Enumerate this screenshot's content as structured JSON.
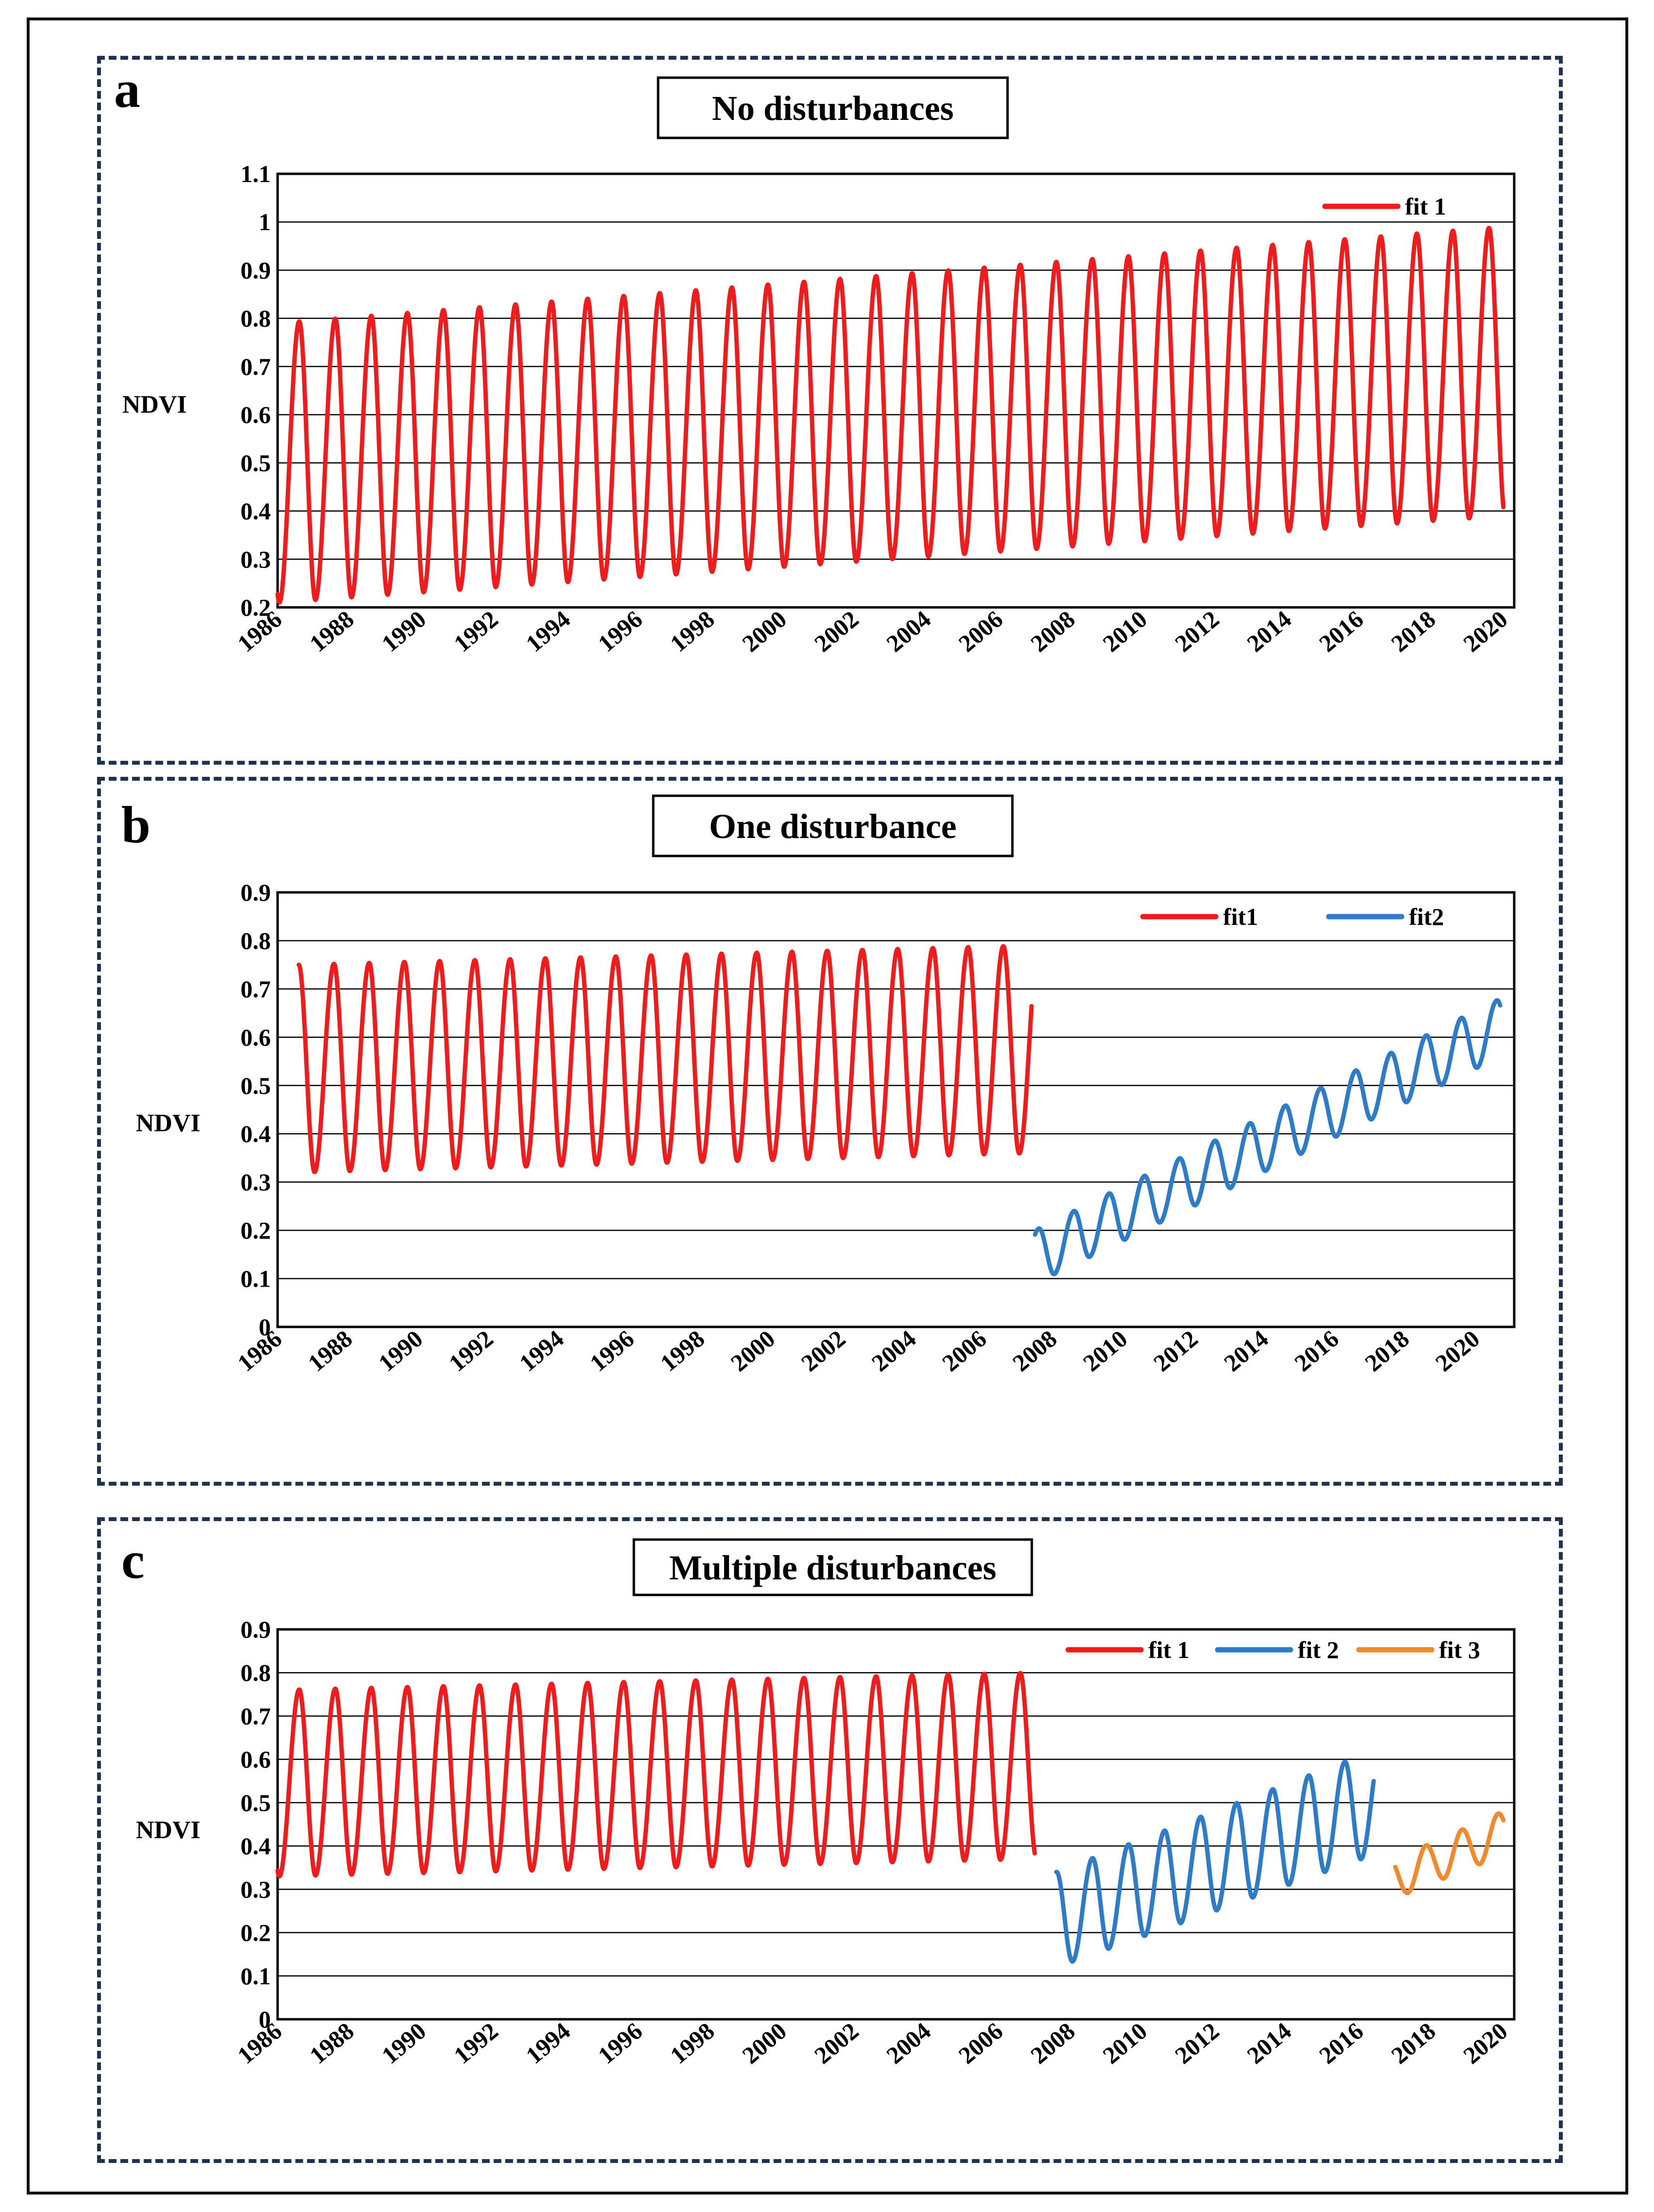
{
  "colors": {
    "fit1": "#ee1c1c",
    "fit2": "#2e7bc8",
    "fit3": "#f08a2c"
  },
  "chart_data": [
    {
      "type": "line",
      "panel_letter": "a",
      "title": "No disturbances",
      "ylabel": "NDVI",
      "xlabel": "",
      "xlim": [
        1986,
        2020.3
      ],
      "ylim": [
        0.2,
        1.1
      ],
      "y_ticks": [
        "0.2",
        "0.3",
        "0.4",
        "0.5",
        "0.6",
        "0.7",
        "0.8",
        "0.9",
        "1",
        "1.1"
      ],
      "y_tick_values": [
        0.2,
        0.3,
        0.4,
        0.5,
        0.6,
        0.7,
        0.8,
        0.9,
        1.0,
        1.1
      ],
      "x_ticks": [
        "1986",
        "1988",
        "1990",
        "1992",
        "1994",
        "1996",
        "1998",
        "2000",
        "2002",
        "2004",
        "2006",
        "2008",
        "2010",
        "2012",
        "2014",
        "2016",
        "2018",
        "2020"
      ],
      "legend_position": "top-right",
      "series": [
        {
          "name": "fit 1",
          "color": "fit1",
          "start": 1986.0,
          "end": 2020.0,
          "peak_start": 0.79,
          "peak_end": 0.99,
          "trough_start": 0.21,
          "trough_end": 0.39,
          "peak_phase": 0.6,
          "trough_phase": 0.05
        }
      ]
    },
    {
      "type": "line",
      "panel_letter": "b",
      "title": "One disturbance",
      "ylabel": "NDVI",
      "xlabel": "",
      "xlim": [
        1986,
        2021.1
      ],
      "ylim": [
        0,
        0.9
      ],
      "y_ticks": [
        "0",
        "0.1",
        "0.2",
        "0.3",
        "0.4",
        "0.5",
        "0.6",
        "0.7",
        "0.8",
        "0.9"
      ],
      "y_tick_values": [
        0,
        0.1,
        0.2,
        0.3,
        0.4,
        0.5,
        0.6,
        0.7,
        0.8,
        0.9
      ],
      "x_ticks": [
        "1986",
        "1988",
        "1990",
        "1992",
        "1994",
        "1996",
        "1998",
        "2000",
        "2002",
        "2004",
        "2006",
        "2008",
        "2010",
        "2012",
        "2014",
        "2016",
        "2018",
        "2020"
      ],
      "legend_position": "top-right",
      "series": [
        {
          "name": "fit1",
          "color": "fit1",
          "start": 1986.6,
          "end": 2007.4,
          "peak_start": 0.75,
          "peak_end": 0.79,
          "trough_start": 0.32,
          "trough_end": 0.36,
          "peak_phase": 0.6,
          "trough_phase": 0.05
        },
        {
          "name": "fit2",
          "color": "fit2",
          "start": 2007.5,
          "end": 2020.7,
          "peak_start": 0.2,
          "peak_end": 0.68,
          "trough_start": 0.09,
          "trough_end": 0.56,
          "peak_phase": 0.6,
          "trough_phase": 0.05
        }
      ]
    },
    {
      "type": "line",
      "panel_letter": "c",
      "title": "Multiple disturbances",
      "ylabel": "NDVI",
      "xlabel": "",
      "xlim": [
        1986,
        2020.3
      ],
      "ylim": [
        0,
        0.9
      ],
      "y_ticks": [
        "0",
        "0.1",
        "0.2",
        "0.3",
        "0.4",
        "0.5",
        "0.6",
        "0.7",
        "0.8",
        "0.9"
      ],
      "y_tick_values": [
        0,
        0.1,
        0.2,
        0.3,
        0.4,
        0.5,
        0.6,
        0.7,
        0.8,
        0.9
      ],
      "x_ticks": [
        "1986",
        "1988",
        "1990",
        "1992",
        "1994",
        "1996",
        "1998",
        "2000",
        "2002",
        "2004",
        "2006",
        "2008",
        "2010",
        "2012",
        "2014",
        "2016",
        "2018",
        "2020"
      ],
      "legend_position": "top-right",
      "series": [
        {
          "name": "fit 1",
          "color": "fit1",
          "start": 1986.0,
          "end": 2007.0,
          "peak_start": 0.76,
          "peak_end": 0.8,
          "trough_start": 0.33,
          "trough_end": 0.37,
          "peak_phase": 0.6,
          "trough_phase": 0.05
        },
        {
          "name": "fit 2",
          "color": "fit2",
          "start": 2007.6,
          "end": 2016.4,
          "peak_start": 0.34,
          "peak_end": 0.62,
          "trough_start": 0.12,
          "trough_end": 0.38,
          "peak_phase": 0.6,
          "trough_phase": 0.05
        },
        {
          "name": "fit 3",
          "color": "fit3",
          "start": 2017.0,
          "end": 2020.0,
          "peak_start": 0.37,
          "peak_end": 0.48,
          "trough_start": 0.28,
          "trough_end": 0.38,
          "peak_phase": 0.85,
          "trough_phase": 0.35
        }
      ]
    }
  ]
}
